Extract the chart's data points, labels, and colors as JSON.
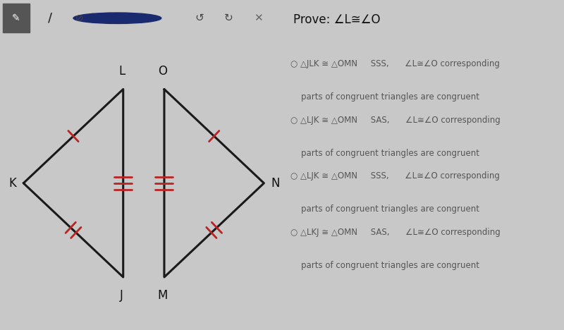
{
  "bg_color": "#c8c8c8",
  "toolbar_color": "#888888",
  "panel_bg": "#e0e0e0",
  "right_bg": "#d4d4d4",
  "title": "Prove: ∠L≅∠O",
  "options_line1": [
    "○ △JLK ≅ △OMN     SSS,      ∠L≅∠O corresponding",
    "○ △LJK ≅ △OMN     SAS,      ∠L≅∠O corresponding",
    "○ △LJK ≅ △OMN     SSS,      ∠L≅∠O corresponding",
    "○ △LKJ ≅ △OMN     SAS,      ∠L≅∠O corresponding"
  ],
  "options_line2": "    parts of congruent triangles are congruent",
  "tri1": {
    "K": [
      0.08,
      0.5
    ],
    "L": [
      0.42,
      0.82
    ],
    "J": [
      0.42,
      0.18
    ]
  },
  "tri2": {
    "O": [
      0.56,
      0.82
    ],
    "M": [
      0.56,
      0.18
    ],
    "N": [
      0.9,
      0.5
    ]
  },
  "tick_color": "#bb2222",
  "line_color": "#1a1a1a",
  "label_color": "#111111",
  "text_color": "#555555",
  "title_color": "#111111"
}
